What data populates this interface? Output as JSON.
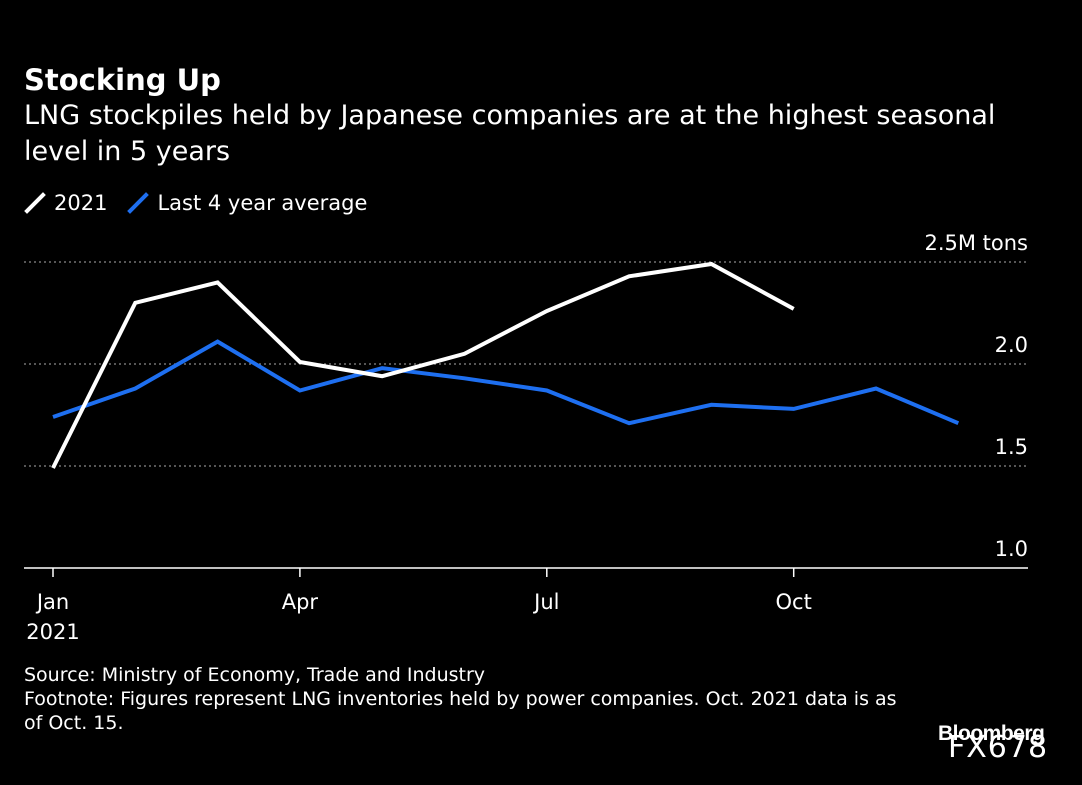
{
  "header": {
    "title": "Stocking Up",
    "subtitle": "LNG stockpiles held by Japanese companies are at the highest seasonal level in 5 years"
  },
  "legend": {
    "items": [
      {
        "label": "2021",
        "color": "#ffffff"
      },
      {
        "label": "Last 4 year average",
        "color": "#1e6ff0"
      }
    ]
  },
  "chart_data": {
    "type": "line",
    "x": [
      "Jan",
      "Feb",
      "Mar",
      "Apr",
      "May",
      "Jun",
      "Jul",
      "Aug",
      "Sep",
      "Oct",
      "Nov",
      "Dec"
    ],
    "series": [
      {
        "name": "2021",
        "color": "#ffffff",
        "values": [
          1.49,
          2.3,
          2.4,
          2.01,
          1.94,
          2.05,
          2.26,
          2.43,
          2.49,
          2.27,
          null,
          null
        ]
      },
      {
        "name": "Last 4 year average",
        "color": "#1e6ff0",
        "values": [
          1.74,
          1.88,
          2.11,
          1.87,
          1.98,
          1.93,
          1.87,
          1.71,
          1.8,
          1.78,
          1.88,
          1.71
        ]
      }
    ],
    "ylim": [
      1.0,
      2.5
    ],
    "y_ticks": [
      {
        "value": 2.5,
        "label": "2.5M tons"
      },
      {
        "value": 2.0,
        "label": "2.0"
      },
      {
        "value": 1.5,
        "label": "1.5"
      },
      {
        "value": 1.0,
        "label": "1.0"
      }
    ],
    "x_ticks": [
      {
        "month": 0,
        "label": "Jan",
        "sublabel": "2021"
      },
      {
        "month": 3,
        "label": "Apr"
      },
      {
        "month": 6,
        "label": "Jul"
      },
      {
        "month": 9,
        "label": "Oct"
      }
    ],
    "grid": true,
    "ylabel": "",
    "xlabel": ""
  },
  "footer": {
    "source": "Source: Ministry of Economy, Trade and Industry",
    "footnote": "Footnote: Figures represent LNG inventories held by power companies. Oct. 2021 data is as of Oct. 15.",
    "brand": "Bloomberg",
    "watermark": "FX678"
  }
}
